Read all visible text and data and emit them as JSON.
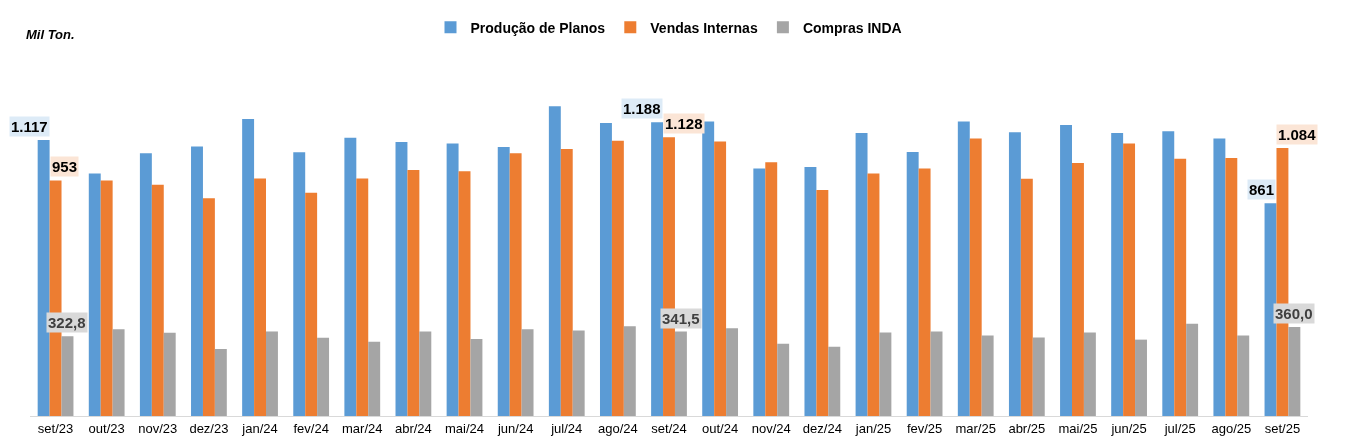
{
  "chart_data": {
    "type": "bar",
    "ylabel": "Mil Ton.",
    "categories": [
      "set/23",
      "out/23",
      "nov/23",
      "dez/23",
      "jan/24",
      "fev/24",
      "mar/24",
      "abr/24",
      "mai/24",
      "jun/24",
      "jul/24",
      "ago/24",
      "set/24",
      "out/24",
      "nov/24",
      "dez/24",
      "jan/25",
      "fev/25",
      "mar/25",
      "abr/25",
      "mai/25",
      "jun/25",
      "jul/25",
      "ago/25",
      "set/25"
    ],
    "series": [
      {
        "name": "Produção de Planos",
        "color": "#5b9bd5",
        "values": [
          1117,
          981,
          1063,
          1090,
          1202,
          1067,
          1126,
          1109,
          1103,
          1088,
          1253,
          1185,
          1188,
          1191,
          1001,
          1007,
          1145,
          1068,
          1191,
          1148,
          1177,
          1145,
          1152,
          1123,
          861
        ],
        "value_labels": [
          "1.117",
          null,
          null,
          null,
          null,
          null,
          null,
          null,
          null,
          null,
          null,
          null,
          "1.188",
          null,
          null,
          null,
          null,
          null,
          null,
          null,
          null,
          null,
          null,
          null,
          "861"
        ]
      },
      {
        "name": "Vendas Internas",
        "color": "#ed7d31",
        "values": [
          953,
          953,
          936,
          881,
          961,
          903,
          961,
          995,
          990,
          1063,
          1080,
          1114,
          1128,
          1111,
          1027,
          914,
          981,
          1001,
          1123,
          960,
          1024,
          1102,
          1041,
          1044,
          1084
        ],
        "value_labels": [
          "953",
          null,
          null,
          null,
          null,
          null,
          null,
          null,
          null,
          null,
          null,
          null,
          "1.128",
          null,
          null,
          null,
          null,
          null,
          null,
          null,
          null,
          null,
          null,
          null,
          "1.084"
        ]
      },
      {
        "name": "Compras INDA",
        "color": "#a5a5a5",
        "values": [
          322.8,
          351,
          337,
          271,
          342,
          317,
          300,
          342,
          312,
          351,
          346,
          363,
          341.5,
          355,
          292,
          280,
          338,
          342,
          326,
          318,
          338,
          309,
          373,
          326,
          360.0
        ],
        "value_labels": [
          "322,8",
          null,
          null,
          null,
          null,
          null,
          null,
          null,
          null,
          null,
          null,
          null,
          "341,5",
          null,
          null,
          null,
          null,
          null,
          null,
          null,
          null,
          null,
          null,
          null,
          "360,0"
        ]
      }
    ],
    "legend": "top",
    "tick_labels": "x"
  }
}
